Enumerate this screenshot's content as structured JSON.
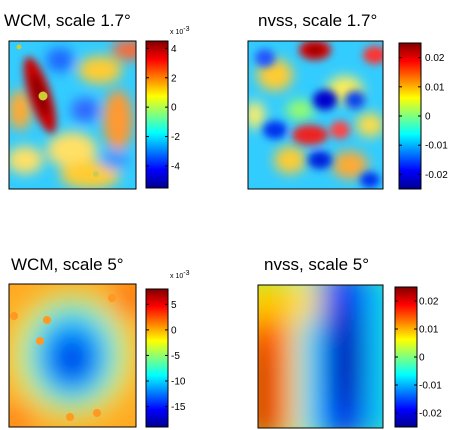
{
  "chart_data": [
    {
      "type": "heatmap",
      "title": "WCM, scale 1.7°",
      "colormap": "jet",
      "colorbar": {
        "ticks": [
          4,
          2,
          0,
          -2,
          -4
        ],
        "multiplier": "x 10",
        "exponent": "-3",
        "range": [
          -5.5,
          4.5
        ]
      },
      "field": "small-scale blobs; dark red elongated ridge upper-left, orange/yellow patches on cyan background, few small yellow dots"
    },
    {
      "type": "heatmap",
      "title": "nvss, scale 1.7°",
      "colormap": "jet",
      "colorbar": {
        "ticks": [
          "0.02",
          "0.01",
          "0",
          "-0.01",
          "-0.02"
        ],
        "range": [
          -0.025,
          0.025
        ]
      },
      "field": "small-scale blobs; red and blue spots scattered on cyan background"
    },
    {
      "type": "heatmap",
      "title": "WCM, scale 5°",
      "colormap": "jet",
      "colorbar": {
        "ticks": [
          5,
          0,
          -5,
          -10,
          -15
        ],
        "multiplier": "x 10",
        "exponent": "-3",
        "range": [
          -19,
          8
        ]
      },
      "field": "large-scale; blue minimum in center, orange/red near edges, a few orange dots"
    },
    {
      "type": "heatmap",
      "title": "nvss, scale 5°",
      "colormap": "jet",
      "colorbar": {
        "ticks": [
          "0.02",
          "0.01",
          "0",
          "-0.01",
          "-0.02"
        ],
        "range": [
          -0.025,
          0.025
        ]
      },
      "field": "large-scale; red on left side, dark blue vertical band right of center, cyan/yellow elsewhere"
    }
  ]
}
